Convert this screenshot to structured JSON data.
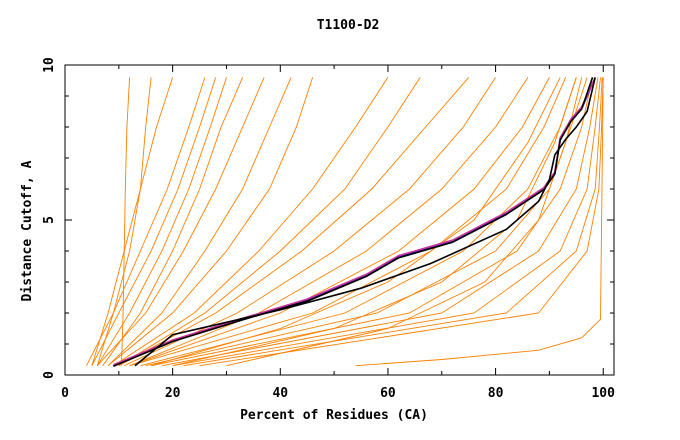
{
  "chart_data": {
    "type": "line",
    "title": "T1100-D2",
    "xlabel": "Percent of Residues (CA)",
    "ylabel": "Distance Cutoff, A",
    "xlim": [
      0,
      102
    ],
    "ylim": [
      0,
      10
    ],
    "x_ticks": [
      0,
      20,
      40,
      60,
      80,
      100
    ],
    "y_ticks": [
      0,
      5,
      10
    ],
    "grid": false,
    "legend": "none",
    "colors": {
      "models": "#ff8000",
      "highlight_blue": "#0000cc",
      "highlight_black": "#000000",
      "highlight_magenta": "#cc3399",
      "axis": "#000000"
    },
    "series": [
      {
        "color": "#ff8000",
        "x": [
          10.5,
          10.8,
          11,
          11.2,
          11.5,
          12
        ],
        "y": [
          0.3,
          2,
          4,
          6,
          8,
          9.6
        ]
      },
      {
        "color": "#ff8000",
        "x": [
          6,
          9,
          12,
          14,
          15,
          16
        ],
        "y": [
          0.3,
          2,
          4,
          6,
          8,
          9.6
        ]
      },
      {
        "color": "#ff8000",
        "x": [
          5,
          8,
          11,
          14,
          17,
          20
        ],
        "y": [
          0.3,
          2,
          4,
          6,
          8,
          9.6
        ]
      },
      {
        "color": "#ff8000",
        "x": [
          4,
          9,
          14,
          19,
          23,
          26
        ],
        "y": [
          0.3,
          2,
          4,
          6,
          8,
          9.6
        ]
      },
      {
        "color": "#ff8000",
        "x": [
          5,
          10,
          16,
          21,
          25,
          28
        ],
        "y": [
          0.3,
          2,
          4,
          6,
          8,
          9.6
        ]
      },
      {
        "color": "#ff8000",
        "x": [
          6,
          12,
          18,
          23,
          27,
          30
        ],
        "y": [
          0.3,
          2,
          4,
          6,
          8,
          9.6
        ]
      },
      {
        "color": "#ff8000",
        "x": [
          7,
          14,
          20,
          25,
          29,
          33
        ],
        "y": [
          0.3,
          2,
          4,
          6,
          8,
          9.6
        ]
      },
      {
        "color": "#ff8000",
        "x": [
          6,
          15,
          22,
          28,
          33,
          37
        ],
        "y": [
          0.3,
          2,
          4,
          6,
          8,
          9.6
        ]
      },
      {
        "color": "#ff8000",
        "x": [
          8,
          18,
          26,
          33,
          38,
          42
        ],
        "y": [
          0.3,
          2,
          4,
          6,
          8,
          9.6
        ]
      },
      {
        "color": "#ff8000",
        "x": [
          8,
          20,
          30,
          38,
          43,
          46
        ],
        "y": [
          0.3,
          2,
          4,
          6,
          8,
          9.6
        ]
      },
      {
        "color": "#ff8000",
        "x": [
          9,
          24,
          36,
          46,
          54,
          60
        ],
        "y": [
          0.3,
          2,
          4,
          6,
          8,
          9.6
        ]
      },
      {
        "color": "#ff8000",
        "x": [
          10,
          26,
          40,
          52,
          60,
          66
        ],
        "y": [
          0.3,
          2,
          4,
          6,
          8,
          9.6
        ]
      },
      {
        "color": "#ff8000",
        "x": [
          10,
          28,
          44,
          57,
          67,
          75
        ],
        "y": [
          0.3,
          2,
          4,
          6,
          8,
          9.6
        ]
      },
      {
        "color": "#ff8000",
        "x": [
          11,
          32,
          50,
          64,
          74,
          80
        ],
        "y": [
          0.3,
          2,
          4,
          6,
          8,
          9.6
        ]
      },
      {
        "color": "#ff8000",
        "x": [
          12,
          36,
          56,
          70,
          80,
          86
        ],
        "y": [
          0.3,
          2,
          4,
          6,
          8,
          9.6
        ]
      },
      {
        "color": "#ff8000",
        "x": [
          12,
          40,
          62,
          76,
          85,
          90
        ],
        "y": [
          0.3,
          2,
          4,
          6,
          8,
          9.6
        ]
      },
      {
        "color": "#ff8000",
        "x": [
          12,
          46,
          68,
          82,
          89,
          93
        ],
        "y": [
          0.3,
          2,
          4,
          6,
          8,
          9.6
        ]
      },
      {
        "color": "#ff8000",
        "x": [
          14,
          52,
          74,
          86,
          92,
          95
        ],
        "y": [
          0.3,
          2,
          4,
          6,
          8,
          9.6
        ]
      },
      {
        "color": "#ff8000",
        "x": [
          15,
          58,
          80,
          90,
          94,
          97
        ],
        "y": [
          0.3,
          2,
          4,
          6,
          8,
          9.6
        ]
      },
      {
        "color": "#ff8000",
        "x": [
          16,
          64,
          84,
          92,
          96,
          98
        ],
        "y": [
          0.3,
          2,
          4,
          6,
          8,
          9.6
        ]
      },
      {
        "color": "#ff8000",
        "x": [
          18,
          70,
          88,
          95,
          97.5,
          99
        ],
        "y": [
          0.3,
          2,
          4,
          6,
          8,
          9.6
        ]
      },
      {
        "color": "#ff8000",
        "x": [
          20,
          76,
          92,
          97,
          98.5,
          99.5
        ],
        "y": [
          0.3,
          2,
          4,
          6,
          8,
          9.6
        ]
      },
      {
        "color": "#ff8000",
        "x": [
          22,
          82,
          95,
          98.5,
          99.3,
          99.8
        ],
        "y": [
          0.3,
          2,
          4,
          6,
          8,
          9.6
        ]
      },
      {
        "color": "#ff8000",
        "x": [
          25,
          88,
          97,
          99.2,
          99.7,
          100
        ],
        "y": [
          0.3,
          2,
          4,
          6,
          8,
          9.6
        ]
      },
      {
        "color": "#ff8000",
        "x": [
          54,
          70,
          88,
          96,
          99.5,
          100
        ],
        "y": [
          0.3,
          0.5,
          0.8,
          1.2,
          1.8,
          9.6
        ]
      },
      {
        "color": "#ff8000",
        "x": [
          30,
          60,
          78,
          88,
          93,
          96
        ],
        "y": [
          0.3,
          1.5,
          3,
          5,
          7.5,
          9.6
        ]
      },
      {
        "color": "#ff8000",
        "x": [
          20,
          50,
          70,
          84,
          91,
          95
        ],
        "y": [
          0.3,
          1.5,
          3,
          5,
          7.5,
          9.6
        ]
      },
      {
        "color": "#ff8000",
        "x": [
          16,
          40,
          60,
          76,
          86,
          92
        ],
        "y": [
          0.3,
          1.5,
          3,
          5,
          7.5,
          9.6
        ]
      },
      {
        "color": "#0000cc",
        "x": [
          9,
          20,
          33,
          45,
          56,
          62,
          72,
          82,
          89,
          91,
          92,
          94,
          96,
          98.5
        ],
        "y": [
          0.3,
          1.1,
          1.8,
          2.4,
          3.2,
          3.8,
          4.3,
          5.2,
          6.0,
          6.5,
          7.6,
          8.2,
          8.6,
          9.6
        ]
      },
      {
        "color": "#cc3399",
        "x": [
          9,
          20,
          33,
          45,
          56,
          62,
          72,
          82,
          89,
          91,
          92,
          94,
          96,
          98.5
        ],
        "y": [
          0.33,
          1.13,
          1.83,
          2.45,
          3.25,
          3.85,
          4.35,
          5.25,
          6.05,
          6.55,
          7.65,
          8.25,
          8.65,
          9.6
        ]
      },
      {
        "color": "#000000",
        "x": [
          13,
          20,
          30,
          40,
          55,
          68,
          82,
          88,
          90,
          91,
          93,
          95,
          97,
          98.5
        ],
        "y": [
          0.3,
          1.3,
          1.7,
          2.1,
          2.8,
          3.6,
          4.7,
          5.6,
          6.3,
          7.1,
          7.6,
          8.0,
          8.5,
          9.6
        ]
      },
      {
        "color": "#000000",
        "x": [
          9,
          20,
          33,
          45,
          56,
          62,
          72,
          82,
          89,
          91,
          92,
          94,
          96,
          98
        ],
        "y": [
          0.28,
          1.08,
          1.78,
          2.38,
          3.18,
          3.78,
          4.28,
          5.18,
          5.98,
          6.48,
          7.58,
          8.18,
          8.58,
          9.6
        ]
      }
    ]
  }
}
